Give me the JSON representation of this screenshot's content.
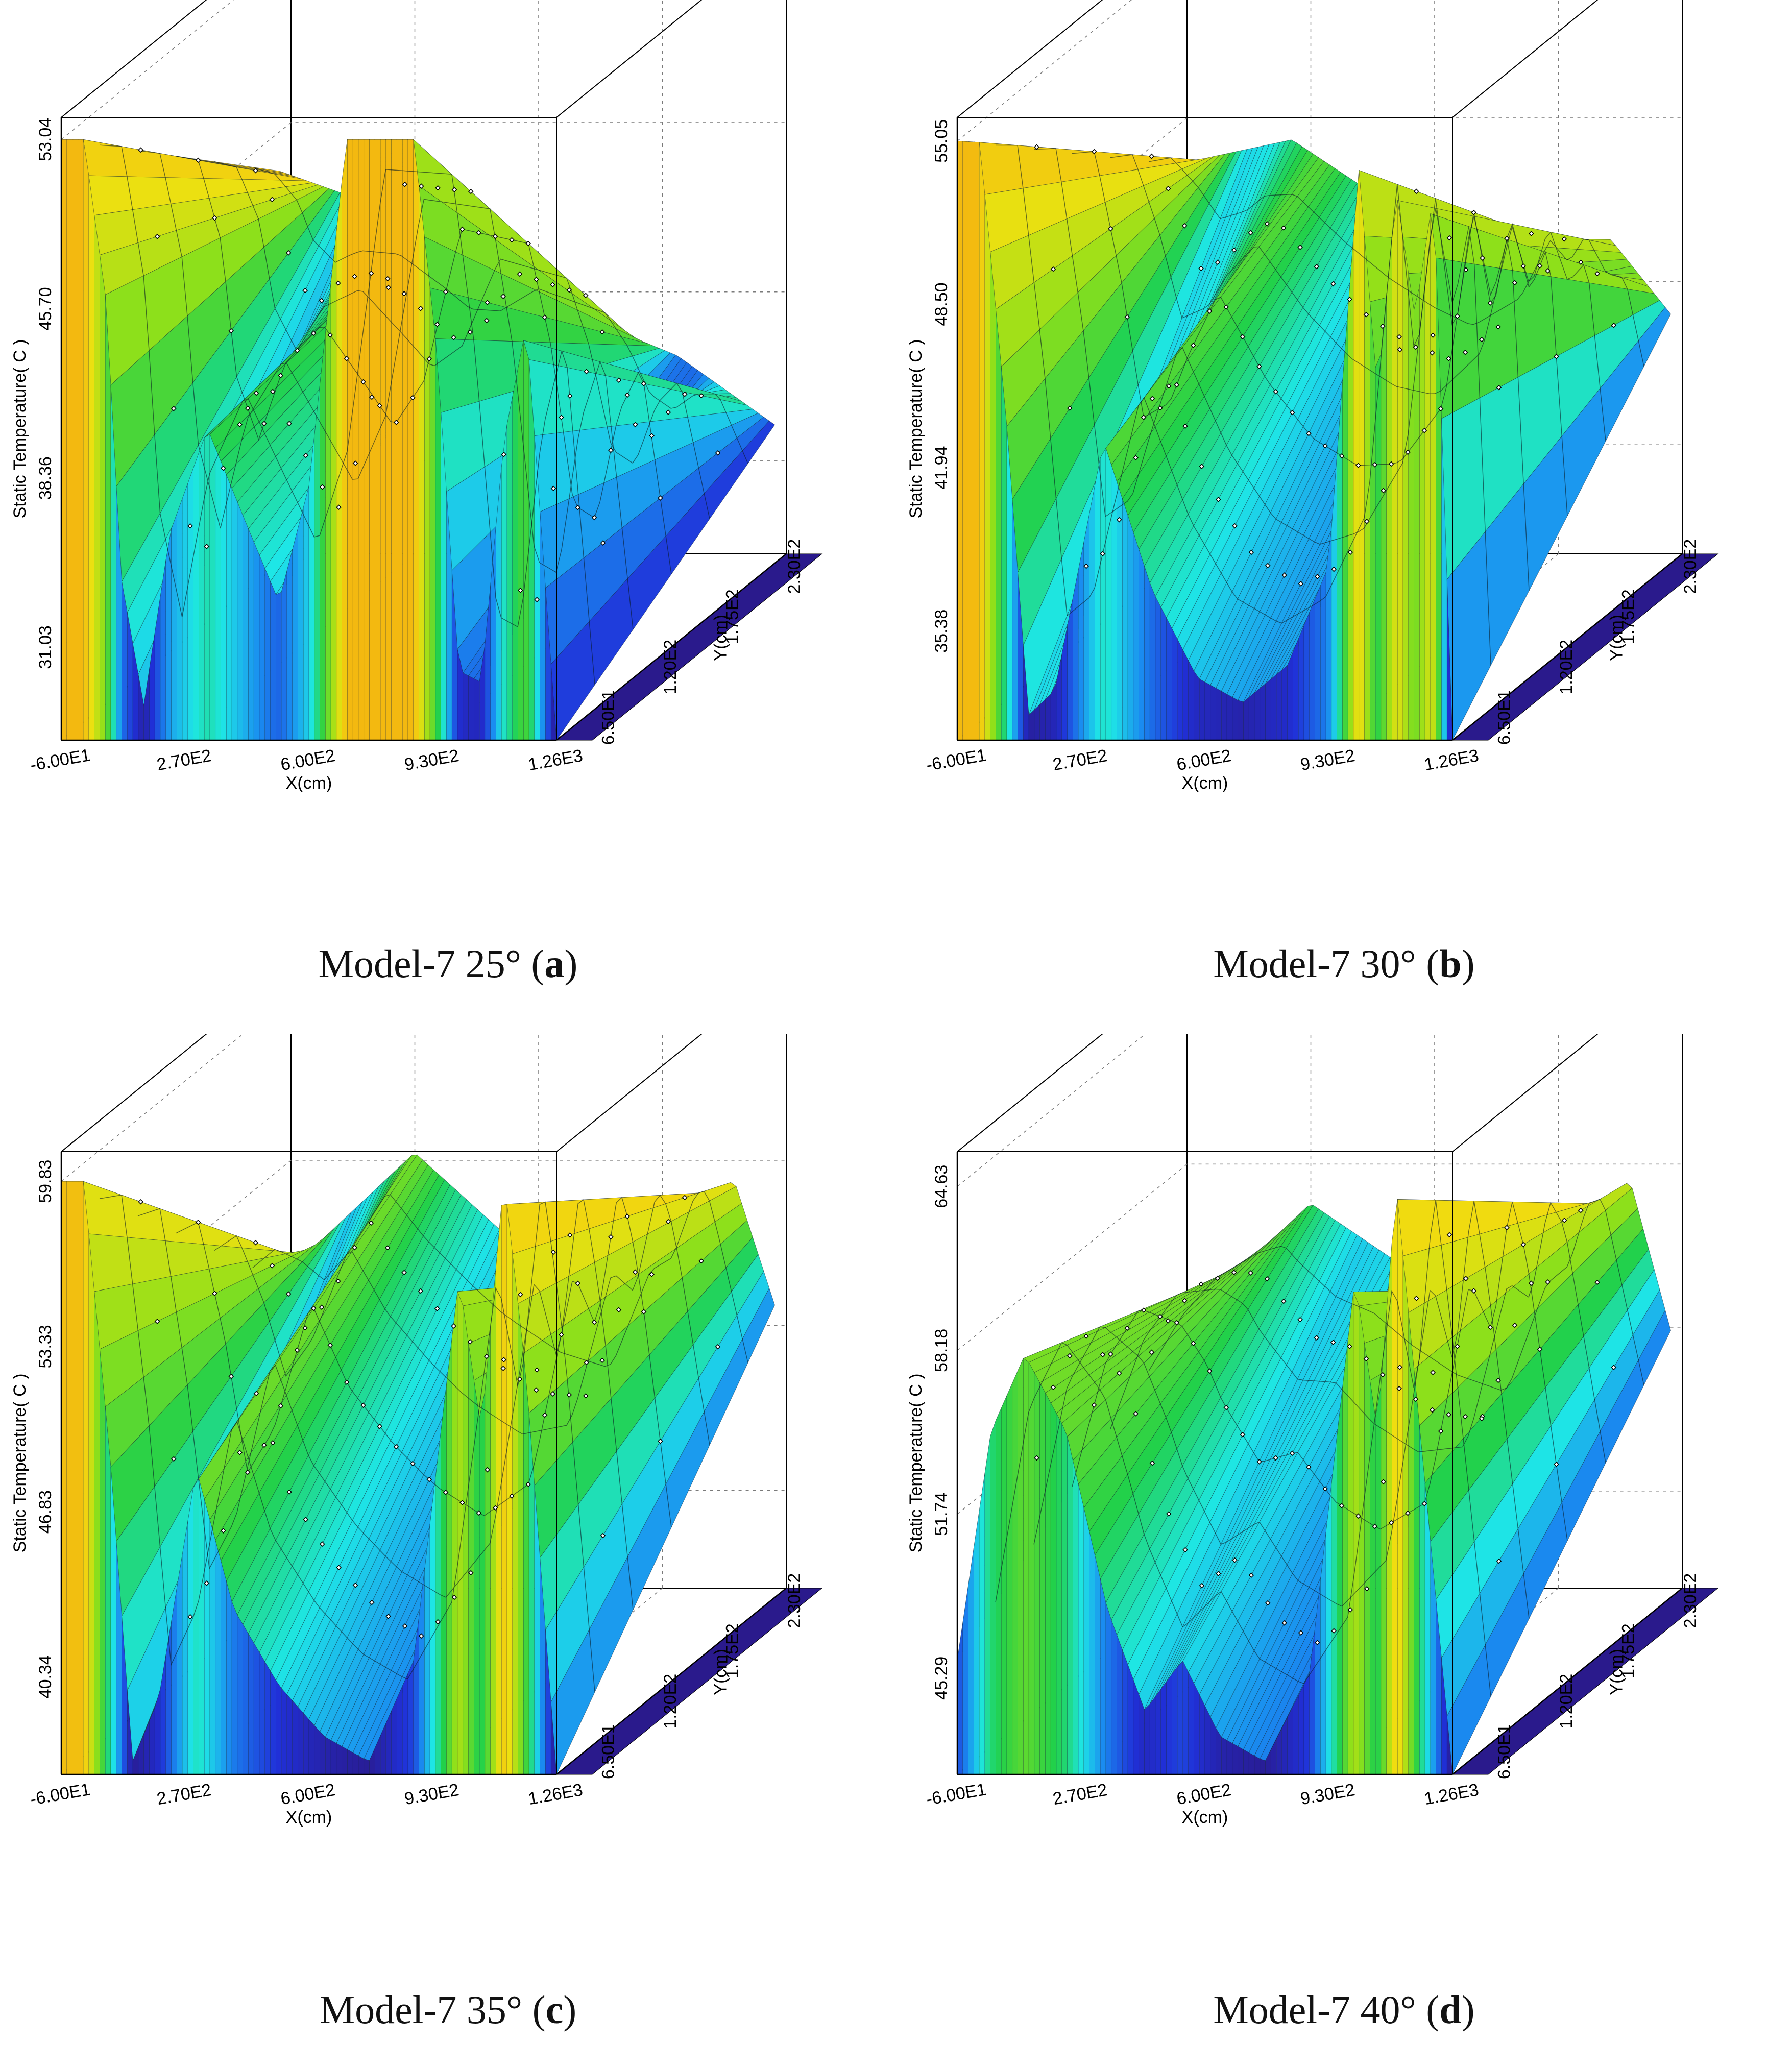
{
  "chart_data": [
    {
      "type": "surface3d",
      "caption": {
        "prefix": "Model-7 25° (",
        "letter": "a",
        "suffix": ")"
      },
      "xlabel": "X(cm)",
      "ylabel": "Y(cm)",
      "zlabel": "Static Temperature( C )",
      "x_ticks": [
        "-6.00E1",
        "2.70E2",
        "6.00E2",
        "9.30E2",
        "1.26E3"
      ],
      "y_ticks": [
        "6.50E1",
        "1.20E2",
        "1.75E2",
        "2.30E2"
      ],
      "z_ticks": [
        "31.03",
        "38.36",
        "45.70",
        "53.04"
      ],
      "zlim": [
        27.0,
        54.0
      ],
      "x": [
        -60,
        270,
        600,
        930,
        1260
      ],
      "surface_profile": [
        {
          "x": -60,
          "z": 53.04
        },
        {
          "x": 0,
          "z": 53.04
        },
        {
          "x": 60,
          "z": 46.0
        },
        {
          "x": 100,
          "z": 34.0
        },
        {
          "x": 160,
          "z": 28.5
        },
        {
          "x": 230,
          "z": 36.0
        },
        {
          "x": 330,
          "z": 40.5
        },
        {
          "x": 430,
          "z": 36.5
        },
        {
          "x": 520,
          "z": 33.0
        },
        {
          "x": 600,
          "z": 38.0
        },
        {
          "x": 700,
          "z": 53.04
        },
        {
          "x": 880,
          "z": 53.04
        },
        {
          "x": 940,
          "z": 44.0
        },
        {
          "x": 1000,
          "z": 30.0
        },
        {
          "x": 1060,
          "z": 29.5
        },
        {
          "x": 1120,
          "z": 40.0
        },
        {
          "x": 1180,
          "z": 45.0
        },
        {
          "x": 1260,
          "z": 27.0
        }
      ],
      "back_profile": [
        {
          "x": -60,
          "z": 44.0
        },
        {
          "x": 200,
          "z": 42.5
        },
        {
          "x": 450,
          "z": 40.5
        },
        {
          "x": 700,
          "z": 38.0
        },
        {
          "x": 1000,
          "z": 36.0
        },
        {
          "x": 1260,
          "z": 33.0
        }
      ]
    },
    {
      "type": "surface3d",
      "caption": {
        "prefix": "Model-7 30° (",
        "letter": "b",
        "suffix": ")"
      },
      "xlabel": "X(cm)",
      "ylabel": "Y(cm)",
      "zlabel": "Static Temperature( C )",
      "x_ticks": [
        "-6.00E1",
        "2.70E2",
        "6.00E2",
        "9.30E2",
        "1.26E3"
      ],
      "y_ticks": [
        "6.50E1",
        "1.20E2",
        "1.75E2",
        "2.30E2"
      ],
      "z_ticks": [
        "35.38",
        "41.94",
        "48.50",
        "55.05"
      ],
      "zlim": [
        31.0,
        56.0
      ],
      "x": [
        -60,
        270,
        600,
        930,
        1260
      ],
      "surface_profile": [
        {
          "x": -60,
          "z": 55.05
        },
        {
          "x": 0,
          "z": 55.0
        },
        {
          "x": 70,
          "z": 44.0
        },
        {
          "x": 130,
          "z": 32.0
        },
        {
          "x": 200,
          "z": 33.0
        },
        {
          "x": 330,
          "z": 43.0
        },
        {
          "x": 460,
          "z": 37.0
        },
        {
          "x": 580,
          "z": 33.5
        },
        {
          "x": 700,
          "z": 32.5
        },
        {
          "x": 820,
          "z": 34.0
        },
        {
          "x": 930,
          "z": 38.0
        },
        {
          "x": 1010,
          "z": 54.0
        },
        {
          "x": 1060,
          "z": 45.0
        },
        {
          "x": 1110,
          "z": 53.0
        },
        {
          "x": 1160,
          "z": 48.0
        },
        {
          "x": 1210,
          "z": 53.0
        },
        {
          "x": 1260,
          "z": 31.0
        }
      ],
      "back_profile": [
        {
          "x": -60,
          "z": 47.0
        },
        {
          "x": 250,
          "z": 48.0
        },
        {
          "x": 500,
          "z": 45.5
        },
        {
          "x": 800,
          "z": 42.5
        },
        {
          "x": 1100,
          "z": 44.0
        },
        {
          "x": 1260,
          "z": 41.0
        }
      ]
    },
    {
      "type": "surface3d",
      "caption": {
        "prefix": "Model-7 35° (",
        "letter": "c",
        "suffix": ")"
      },
      "xlabel": "X(cm)",
      "ylabel": "Y(cm)",
      "zlabel": "Static Temperature( C )",
      "x_ticks": [
        "-6.00E1",
        "2.70E2",
        "6.00E2",
        "9.30E2",
        "1.26E3"
      ],
      "y_ticks": [
        "6.50E1",
        "1.20E2",
        "1.75E2",
        "2.30E2"
      ],
      "z_ticks": [
        "40.34",
        "46.83",
        "53.33",
        "59.83"
      ],
      "zlim": [
        36.5,
        61.0
      ],
      "x": [
        -60,
        270,
        600,
        930,
        1260
      ],
      "surface_profile": [
        {
          "x": -60,
          "z": 59.83
        },
        {
          "x": 0,
          "z": 59.83
        },
        {
          "x": 70,
          "z": 49.0
        },
        {
          "x": 130,
          "z": 37.0
        },
        {
          "x": 200,
          "z": 39.5
        },
        {
          "x": 300,
          "z": 48.5
        },
        {
          "x": 400,
          "z": 43.0
        },
        {
          "x": 520,
          "z": 40.0
        },
        {
          "x": 640,
          "z": 38.0
        },
        {
          "x": 760,
          "z": 37.0
        },
        {
          "x": 880,
          "z": 41.0
        },
        {
          "x": 1000,
          "z": 56.0
        },
        {
          "x": 1060,
          "z": 50.0
        },
        {
          "x": 1120,
          "z": 60.0
        },
        {
          "x": 1180,
          "z": 52.0
        },
        {
          "x": 1260,
          "z": 36.5
        }
      ],
      "back_profile": [
        {
          "x": -60,
          "z": 49.0
        },
        {
          "x": 300,
          "z": 54.0
        },
        {
          "x": 600,
          "z": 50.0
        },
        {
          "x": 900,
          "z": 47.0
        },
        {
          "x": 1150,
          "z": 53.0
        },
        {
          "x": 1260,
          "z": 48.0
        }
      ]
    },
    {
      "type": "surface3d",
      "caption": {
        "prefix": "Model-7 40° (",
        "letter": "d",
        "suffix": ")"
      },
      "xlabel": "X(cm)",
      "ylabel": "Y(cm)",
      "zlabel": "Static Temperature( C )",
      "x_ticks": [
        "-6.00E1",
        "2.70E2",
        "6.00E2",
        "9.30E2",
        "1.26E3"
      ],
      "y_ticks": [
        "6.50E1",
        "1.20E2",
        "1.75E2",
        "2.30E2"
      ],
      "z_ticks": [
        "45.29",
        "51.74",
        "58.18",
        "64.63"
      ],
      "zlim": [
        41.5,
        66.0
      ],
      "x": [
        -60,
        270,
        600,
        930,
        1260
      ],
      "surface_profile": [
        {
          "x": -60,
          "z": 46.0
        },
        {
          "x": 30,
          "z": 55.0
        },
        {
          "x": 120,
          "z": 58.0
        },
        {
          "x": 230,
          "z": 55.0
        },
        {
          "x": 340,
          "z": 48.0
        },
        {
          "x": 440,
          "z": 44.0
        },
        {
          "x": 540,
          "z": 46.0
        },
        {
          "x": 640,
          "z": 43.0
        },
        {
          "x": 760,
          "z": 42.0
        },
        {
          "x": 880,
          "z": 45.5
        },
        {
          "x": 1000,
          "z": 61.0
        },
        {
          "x": 1060,
          "z": 55.0
        },
        {
          "x": 1110,
          "z": 64.63
        },
        {
          "x": 1180,
          "z": 54.0
        },
        {
          "x": 1260,
          "z": 41.5
        }
      ],
      "back_profile": [
        {
          "x": -60,
          "z": 52.0
        },
        {
          "x": 300,
          "z": 57.0
        },
        {
          "x": 600,
          "z": 54.0
        },
        {
          "x": 900,
          "z": 51.0
        },
        {
          "x": 1150,
          "z": 58.0
        },
        {
          "x": 1260,
          "z": 52.0
        }
      ]
    }
  ],
  "colors": {
    "scale": [
      "#2a1a8c",
      "#2030d8",
      "#1a8cf0",
      "#1ee6e6",
      "#22d14a",
      "#8fe01a",
      "#f0e010",
      "#f59a10",
      "#e81010"
    ],
    "axis": "#000000",
    "grid": "#7a7a7a",
    "floor": "#2a1a8c",
    "marker": "#000000"
  }
}
